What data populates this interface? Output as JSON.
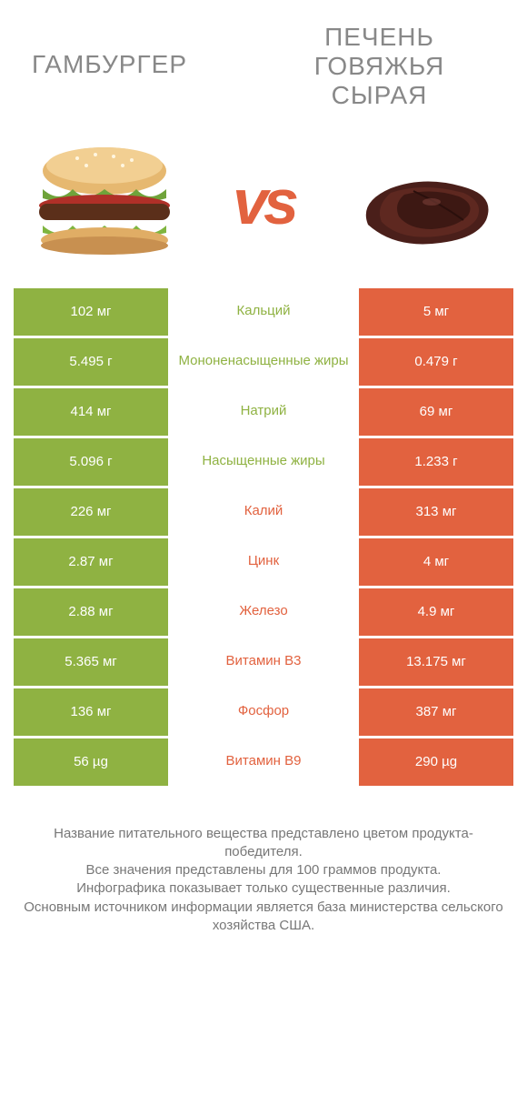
{
  "colors": {
    "green": "#8fb242",
    "orange": "#e2623f",
    "label_green": "#8fb242",
    "label_orange": "#e2623f"
  },
  "header": {
    "left_title": "ГАМБУРГЕР",
    "right_title": "ПЕЧЕНЬ ГОВЯЖЬЯ СЫРАЯ",
    "vs": "vs"
  },
  "rows": [
    {
      "left": "102 мг",
      "label": "Кальций",
      "right": "5 мг",
      "winner": "left"
    },
    {
      "left": "5.495 г",
      "label": "Мононенасыщенные жиры",
      "right": "0.479 г",
      "winner": "left"
    },
    {
      "left": "414 мг",
      "label": "Натрий",
      "right": "69 мг",
      "winner": "left"
    },
    {
      "left": "5.096 г",
      "label": "Насыщенные жиры",
      "right": "1.233 г",
      "winner": "left"
    },
    {
      "left": "226 мг",
      "label": "Калий",
      "right": "313 мг",
      "winner": "right"
    },
    {
      "left": "2.87 мг",
      "label": "Цинк",
      "right": "4 мг",
      "winner": "right"
    },
    {
      "left": "2.88 мг",
      "label": "Железо",
      "right": "4.9 мг",
      "winner": "right"
    },
    {
      "left": "5.365 мг",
      "label": "Витамин B3",
      "right": "13.175 мг",
      "winner": "right"
    },
    {
      "left": "136 мг",
      "label": "Фосфор",
      "right": "387 мг",
      "winner": "right"
    },
    {
      "left": "56 µg",
      "label": "Витамин B9",
      "right": "290 µg",
      "winner": "right"
    }
  ],
  "footer": {
    "line1": "Название питательного вещества представлено цветом продукта-победителя.",
    "line2": "Все значения представлены для 100 граммов продукта.",
    "line3": "Инфографика показывает только существенные различия.",
    "line4": "Основным источником информации является база министерства сельского хозяйства США."
  }
}
